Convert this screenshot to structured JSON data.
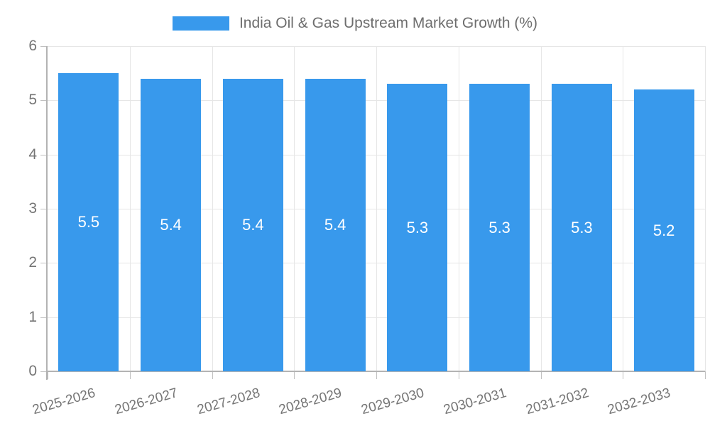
{
  "legend": {
    "label": "India Oil & Gas Upstream Market Growth (%)"
  },
  "chart_data": {
    "type": "bar",
    "title": "India Oil & Gas Upstream Market Growth (%)",
    "categories": [
      "2025-2026",
      "2026-2027",
      "2027-2028",
      "2028-2029",
      "2029-2030",
      "2030-2031",
      "2031-2032",
      "2032-2033"
    ],
    "values": [
      5.5,
      5.4,
      5.4,
      5.4,
      5.3,
      5.3,
      5.3,
      5.2
    ],
    "value_labels": [
      "5.5",
      "5.4",
      "5.4",
      "5.4",
      "5.3",
      "5.3",
      "5.3",
      "5.2"
    ],
    "xlabel": "",
    "ylabel": "",
    "ylim": [
      0,
      6
    ],
    "yticks": [
      0,
      1,
      2,
      3,
      4,
      5,
      6
    ],
    "grid": true,
    "legend_position": "top",
    "colors": {
      "bar": "#3899ec",
      "value_label": "#ffffff",
      "grid": "#e6e6e6",
      "axis": "#b3b3b3",
      "tick": "#c0c0c0",
      "tick_label": "#757575",
      "title": "#6e6e6e"
    }
  }
}
